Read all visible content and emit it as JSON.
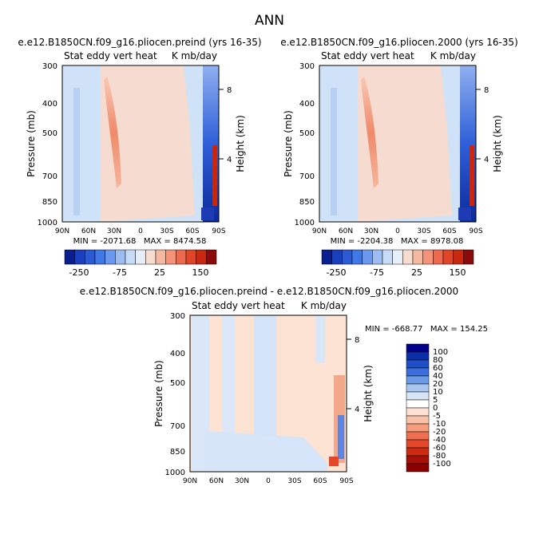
{
  "page": {
    "title": "ANN"
  },
  "panels": [
    {
      "id": "p1",
      "title": "e.e12.B1850CN.f09_g16.pliocen.preind (yrs 16-35)",
      "subtitle_left": "Stat eddy vert heat",
      "subtitle_right": "K mb/day",
      "ylabel_left": "Pressure (mb)",
      "ylabel_right": "Height (km)",
      "pressure_ticks": [
        "300",
        "400",
        "500",
        "700",
        "850",
        "1000"
      ],
      "height_ticks": [
        "8",
        "4"
      ],
      "lat_ticks": [
        "90N",
        "60N",
        "30N",
        "0",
        "30S",
        "60S",
        "90S"
      ],
      "stats": "MIN = -2071.68   MAX = 8474.58"
    },
    {
      "id": "p2",
      "title": "e.e12.B1850CN.f09_g16.pliocen.2000 (yrs 16-35)",
      "subtitle_left": "Stat eddy vert heat",
      "subtitle_right": "K mb/day",
      "ylabel_left": "Pressure (mb)",
      "ylabel_right": "Height (km)",
      "pressure_ticks": [
        "300",
        "400",
        "500",
        "700",
        "850",
        "1000"
      ],
      "height_ticks": [
        "8",
        "4"
      ],
      "lat_ticks": [
        "90N",
        "60N",
        "30N",
        "0",
        "30S",
        "60S",
        "90S"
      ],
      "stats": "MIN = -2204.38   MAX = 8978.08"
    },
    {
      "id": "p3",
      "title": "e.e12.B1850CN.f09_g16.pliocen.preind - e.e12.B1850CN.f09_g16.pliocen.2000",
      "subtitle_left": "Stat eddy vert heat",
      "subtitle_right": "K mb/day",
      "ylabel_left": "Pressure (mb)",
      "ylabel_right": "Height (km)",
      "pressure_ticks": [
        "300",
        "400",
        "500",
        "700",
        "850",
        "1000"
      ],
      "height_ticks": [
        "8",
        "4"
      ],
      "lat_ticks": [
        "90N",
        "60N",
        "30N",
        "0",
        "30S",
        "60S",
        "90S"
      ],
      "stats": "MIN = -668.77   MAX = 154.25"
    }
  ],
  "colorbar_top": {
    "colors": [
      "#0a1f8f",
      "#1a3fbf",
      "#2a5ad6",
      "#3f78e8",
      "#6a98ee",
      "#9dbcf2",
      "#c6dbf7",
      "#e6eef8",
      "#f7dcd0",
      "#f5b9a0",
      "#f3947a",
      "#ee6a4e",
      "#e24428",
      "#c82810",
      "#8b0a0a"
    ],
    "labels": [
      "-250",
      "-75",
      "25",
      "150"
    ]
  },
  "colorbar_bottom": {
    "colors": [
      "#00008b",
      "#0a2fa8",
      "#1f4ec8",
      "#3a6edc",
      "#6b9ae6",
      "#a8c6f0",
      "#d6e4f6",
      "#ffffff",
      "#fde0d2",
      "#f9c2a8",
      "#f59c7c",
      "#ef6e50",
      "#e4462a",
      "#cc2a12",
      "#a51008",
      "#8b0000"
    ],
    "labels": [
      "100",
      "80",
      "60",
      "40",
      "20",
      "10",
      "5",
      "0",
      "-5",
      "-10",
      "-20",
      "-40",
      "-60",
      "-80",
      "-100"
    ]
  },
  "chart_data": [
    {
      "type": "heatmap",
      "title": "e.e12.B1850CN.f09_g16.pliocen.preind (yrs 16-35)",
      "variable": "Stat eddy vert heat",
      "units": "K mb/day",
      "x_axis": {
        "label": "",
        "ticks": [
          "90N",
          "60N",
          "30N",
          "0",
          "30S",
          "60S",
          "90S"
        ],
        "range": [
          90,
          -90
        ]
      },
      "y_axis": {
        "label": "Pressure (mb)",
        "ticks": [
          300,
          400,
          500,
          700,
          850,
          1000
        ],
        "range": [
          1000,
          300
        ],
        "scale": "log"
      },
      "y2_axis": {
        "label": "Height (km)",
        "ticks": [
          8,
          4
        ]
      },
      "min": -2071.68,
      "max": 8474.58,
      "colorbar_labels": [
        -250,
        -75,
        25,
        150
      ]
    },
    {
      "type": "heatmap",
      "title": "e.e12.B1850CN.f09_g16.pliocen.2000 (yrs 16-35)",
      "variable": "Stat eddy vert heat",
      "units": "K mb/day",
      "x_axis": {
        "label": "",
        "ticks": [
          "90N",
          "60N",
          "30N",
          "0",
          "30S",
          "60S",
          "90S"
        ],
        "range": [
          90,
          -90
        ]
      },
      "y_axis": {
        "label": "Pressure (mb)",
        "ticks": [
          300,
          400,
          500,
          700,
          850,
          1000
        ],
        "range": [
          1000,
          300
        ],
        "scale": "log"
      },
      "y2_axis": {
        "label": "Height (km)",
        "ticks": [
          8,
          4
        ]
      },
      "min": -2204.38,
      "max": 8978.08,
      "colorbar_labels": [
        -250,
        -75,
        25,
        150
      ]
    },
    {
      "type": "heatmap",
      "title": "e.e12.B1850CN.f09_g16.pliocen.preind - e.e12.B1850CN.f09_g16.pliocen.2000",
      "variable": "Stat eddy vert heat",
      "units": "K mb/day",
      "x_axis": {
        "label": "",
        "ticks": [
          "90N",
          "60N",
          "30N",
          "0",
          "30S",
          "60S",
          "90S"
        ],
        "range": [
          90,
          -90
        ]
      },
      "y_axis": {
        "label": "Pressure (mb)",
        "ticks": [
          300,
          400,
          500,
          700,
          850,
          1000
        ],
        "range": [
          1000,
          300
        ],
        "scale": "log"
      },
      "y2_axis": {
        "label": "Height (km)",
        "ticks": [
          8,
          4
        ]
      },
      "min": -668.77,
      "max": 154.25,
      "colorbar_labels": [
        100,
        80,
        60,
        40,
        20,
        10,
        5,
        0,
        -5,
        -10,
        -20,
        -40,
        -60,
        -80,
        -100
      ]
    }
  ]
}
